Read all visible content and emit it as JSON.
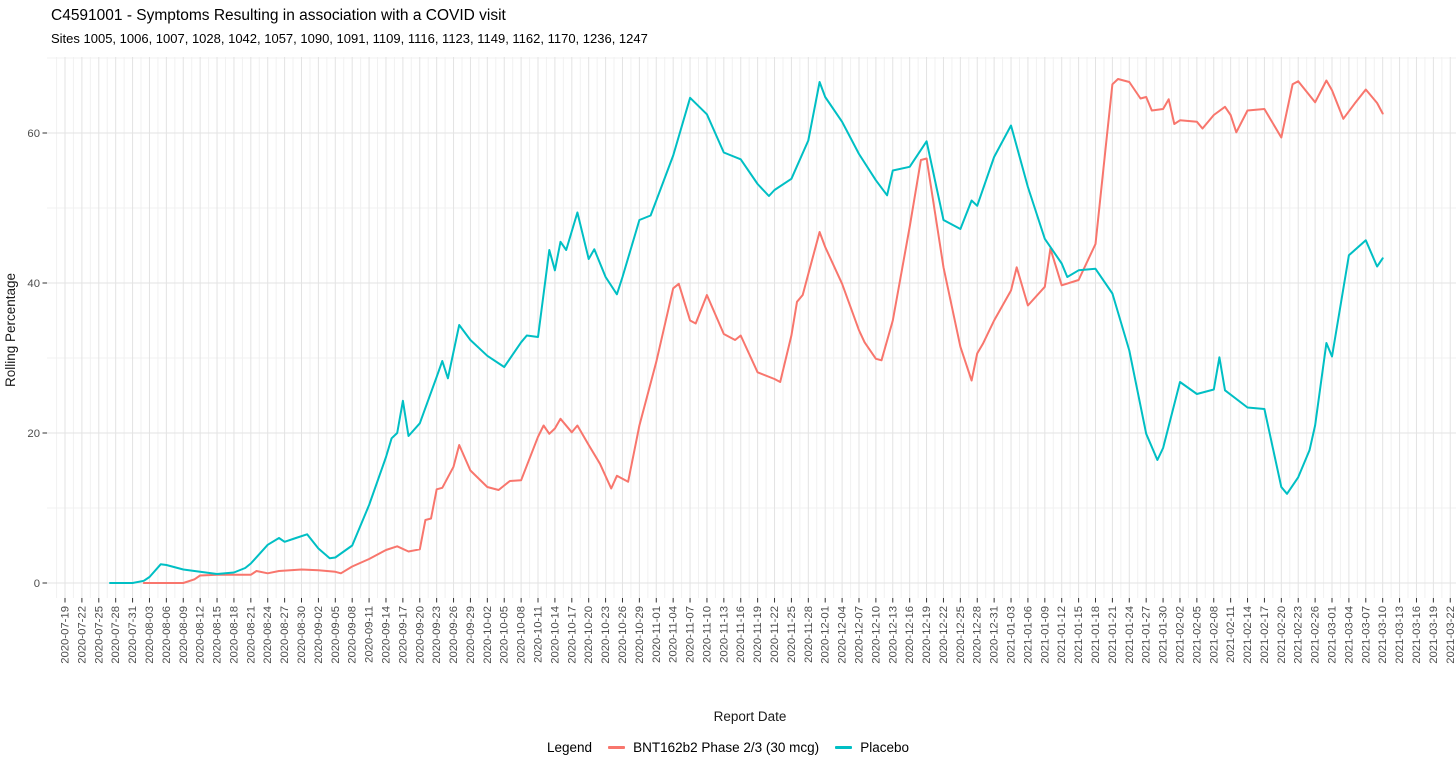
{
  "chart": {
    "title": "C4591001 - Symptoms Resulting in association with a COVID visit",
    "subtitle": "Sites 1005, 1006, 1007, 1028, 1042, 1057, 1090, 1091, 1109, 1116, 1123, 1149, 1162, 1170, 1236, 1247",
    "xlabel": "Report Date",
    "ylabel": "Rolling Percentage",
    "legend_title": "Legend"
  },
  "chart_data": {
    "type": "line",
    "title": "C4591001 - Symptoms Resulting in association with a COVID visit",
    "subtitle": "Sites 1005, 1006, 1007, 1028, 1042, 1057, 1090, 1091, 1109, 1116, 1123, 1149, 1162, 1170, 1236, 1247",
    "xlabel": "Report Date",
    "ylabel": "Rolling Percentage",
    "ylim": [
      -2,
      70
    ],
    "xlim": [
      "2020-07-19",
      "2021-03-22"
    ],
    "grid": true,
    "legend_position": "bottom",
    "y_ticks": [
      0,
      20,
      40,
      60
    ],
    "y_minor_ticks": [
      10,
      30,
      50,
      70
    ],
    "x_ticks": [
      "2020-07-19",
      "2020-07-22",
      "2020-07-25",
      "2020-07-28",
      "2020-07-31",
      "2020-08-03",
      "2020-08-06",
      "2020-08-09",
      "2020-08-12",
      "2020-08-15",
      "2020-08-18",
      "2020-08-21",
      "2020-08-24",
      "2020-08-27",
      "2020-08-30",
      "2020-09-02",
      "2020-09-05",
      "2020-09-08",
      "2020-09-11",
      "2020-09-14",
      "2020-09-17",
      "2020-09-20",
      "2020-09-23",
      "2020-09-26",
      "2020-09-29",
      "2020-10-02",
      "2020-10-05",
      "2020-10-08",
      "2020-10-11",
      "2020-10-14",
      "2020-10-17",
      "2020-10-20",
      "2020-10-23",
      "2020-10-26",
      "2020-10-29",
      "2020-11-01",
      "2020-11-04",
      "2020-11-07",
      "2020-11-10",
      "2020-11-13",
      "2020-11-16",
      "2020-11-19",
      "2020-11-22",
      "2020-11-25",
      "2020-11-28",
      "2020-12-01",
      "2020-12-04",
      "2020-12-07",
      "2020-12-10",
      "2020-12-13",
      "2020-12-16",
      "2020-12-19",
      "2020-12-22",
      "2020-12-25",
      "2020-12-28",
      "2020-12-31",
      "2021-01-03",
      "2021-01-06",
      "2021-01-09",
      "2021-01-12",
      "2021-01-15",
      "2021-01-18",
      "2021-01-21",
      "2021-01-24",
      "2021-01-27",
      "2021-01-30",
      "2021-02-02",
      "2021-02-05",
      "2021-02-08",
      "2021-02-11",
      "2021-02-14",
      "2021-02-17",
      "2021-02-20",
      "2021-02-23",
      "2021-02-26",
      "2021-03-01",
      "2021-03-04",
      "2021-03-07",
      "2021-03-10",
      "2021-03-13",
      "2021-03-16",
      "2021-03-19",
      "2021-03-22"
    ],
    "series": [
      {
        "name": "BNT162b2 Phase 2/3 (30 mcg)",
        "color": "#F8766D",
        "points": [
          [
            "2020-08-02",
            0
          ],
          [
            "2020-08-09",
            0
          ],
          [
            "2020-08-11",
            0.5
          ],
          [
            "2020-08-12",
            1.0
          ],
          [
            "2020-08-15",
            1.1
          ],
          [
            "2020-08-18",
            1.1
          ],
          [
            "2020-08-21",
            1.1
          ],
          [
            "2020-08-22",
            1.6
          ],
          [
            "2020-08-24",
            1.3
          ],
          [
            "2020-08-26",
            1.6
          ],
          [
            "2020-08-30",
            1.8
          ],
          [
            "2020-09-02",
            1.7
          ],
          [
            "2020-09-05",
            1.5
          ],
          [
            "2020-09-06",
            1.3
          ],
          [
            "2020-09-08",
            2.2
          ],
          [
            "2020-09-11",
            3.2
          ],
          [
            "2020-09-14",
            4.4
          ],
          [
            "2020-09-16",
            4.9
          ],
          [
            "2020-09-18",
            4.2
          ],
          [
            "2020-09-20",
            4.5
          ],
          [
            "2020-09-21",
            8.4
          ],
          [
            "2020-09-22",
            8.6
          ],
          [
            "2020-09-23",
            12.5
          ],
          [
            "2020-09-24",
            12.7
          ],
          [
            "2020-09-26",
            15.5
          ],
          [
            "2020-09-27",
            18.4
          ],
          [
            "2020-09-29",
            15.0
          ],
          [
            "2020-10-02",
            12.8
          ],
          [
            "2020-10-04",
            12.4
          ],
          [
            "2020-10-05",
            13.0
          ],
          [
            "2020-10-06",
            13.6
          ],
          [
            "2020-10-08",
            13.7
          ],
          [
            "2020-10-11",
            19.5
          ],
          [
            "2020-10-12",
            21.0
          ],
          [
            "2020-10-13",
            19.9
          ],
          [
            "2020-10-14",
            20.6
          ],
          [
            "2020-10-15",
            21.9
          ],
          [
            "2020-10-17",
            20.1
          ],
          [
            "2020-10-18",
            21.0
          ],
          [
            "2020-10-20",
            18.4
          ],
          [
            "2020-10-22",
            15.9
          ],
          [
            "2020-10-24",
            12.6
          ],
          [
            "2020-10-25",
            14.3
          ],
          [
            "2020-10-27",
            13.5
          ],
          [
            "2020-10-29",
            21.0
          ],
          [
            "2020-11-01",
            29.5
          ],
          [
            "2020-11-04",
            39.3
          ],
          [
            "2020-11-05",
            39.9
          ],
          [
            "2020-11-07",
            35.0
          ],
          [
            "2020-11-08",
            34.6
          ],
          [
            "2020-11-10",
            38.4
          ],
          [
            "2020-11-13",
            33.2
          ],
          [
            "2020-11-15",
            32.4
          ],
          [
            "2020-11-16",
            33.0
          ],
          [
            "2020-11-19",
            28.1
          ],
          [
            "2020-11-22",
            27.2
          ],
          [
            "2020-11-23",
            26.8
          ],
          [
            "2020-11-25",
            33.0
          ],
          [
            "2020-11-26",
            37.5
          ],
          [
            "2020-11-27",
            38.4
          ],
          [
            "2020-11-28",
            41.2
          ],
          [
            "2020-11-30",
            46.8
          ],
          [
            "2020-12-01",
            44.8
          ],
          [
            "2020-12-04",
            39.9
          ],
          [
            "2020-12-07",
            33.7
          ],
          [
            "2020-12-08",
            32.1
          ],
          [
            "2020-12-10",
            29.9
          ],
          [
            "2020-12-11",
            29.7
          ],
          [
            "2020-12-13",
            35.0
          ],
          [
            "2020-12-16",
            47.5
          ],
          [
            "2020-12-18",
            56.4
          ],
          [
            "2020-12-19",
            56.6
          ],
          [
            "2020-12-22",
            42.1
          ],
          [
            "2020-12-25",
            31.5
          ],
          [
            "2020-12-27",
            27.0
          ],
          [
            "2020-12-28",
            30.6
          ],
          [
            "2020-12-29",
            31.9
          ],
          [
            "2020-12-31",
            35.0
          ],
          [
            "2021-01-03",
            39.0
          ],
          [
            "2021-01-04",
            42.1
          ],
          [
            "2021-01-06",
            37.0
          ],
          [
            "2021-01-09",
            39.5
          ],
          [
            "2021-01-10",
            44.6
          ],
          [
            "2021-01-12",
            39.7
          ],
          [
            "2021-01-15",
            40.4
          ],
          [
            "2021-01-18",
            45.2
          ],
          [
            "2021-01-20",
            59.5
          ],
          [
            "2021-01-21",
            66.5
          ],
          [
            "2021-01-22",
            67.2
          ],
          [
            "2021-01-24",
            66.8
          ],
          [
            "2021-01-26",
            64.6
          ],
          [
            "2021-01-27",
            64.8
          ],
          [
            "2021-01-28",
            63.0
          ],
          [
            "2021-01-30",
            63.2
          ],
          [
            "2021-01-31",
            64.5
          ],
          [
            "2021-02-01",
            61.2
          ],
          [
            "2021-02-02",
            61.7
          ],
          [
            "2021-02-05",
            61.5
          ],
          [
            "2021-02-06",
            60.6
          ],
          [
            "2021-02-08",
            62.4
          ],
          [
            "2021-02-10",
            63.5
          ],
          [
            "2021-02-11",
            62.4
          ],
          [
            "2021-02-12",
            60.1
          ],
          [
            "2021-02-14",
            63.0
          ],
          [
            "2021-02-17",
            63.2
          ],
          [
            "2021-02-20",
            59.4
          ],
          [
            "2021-02-22",
            66.5
          ],
          [
            "2021-02-23",
            66.9
          ],
          [
            "2021-02-26",
            64.1
          ],
          [
            "2021-02-28",
            67.0
          ],
          [
            "2021-03-01",
            65.7
          ],
          [
            "2021-03-03",
            61.9
          ],
          [
            "2021-03-05",
            63.9
          ],
          [
            "2021-03-07",
            65.8
          ],
          [
            "2021-03-09",
            64.0
          ],
          [
            "2021-03-10",
            62.6
          ]
        ]
      },
      {
        "name": "Placebo",
        "color": "#00BFC4",
        "points": [
          [
            "2020-07-27",
            0
          ],
          [
            "2020-07-31",
            0
          ],
          [
            "2020-08-02",
            0.3
          ],
          [
            "2020-08-03",
            0.8
          ],
          [
            "2020-08-05",
            2.5
          ],
          [
            "2020-08-06",
            2.4
          ],
          [
            "2020-08-09",
            1.8
          ],
          [
            "2020-08-12",
            1.5
          ],
          [
            "2020-08-15",
            1.2
          ],
          [
            "2020-08-18",
            1.4
          ],
          [
            "2020-08-20",
            2.0
          ],
          [
            "2020-08-21",
            2.6
          ],
          [
            "2020-08-24",
            5.1
          ],
          [
            "2020-08-26",
            6.0
          ],
          [
            "2020-08-27",
            5.5
          ],
          [
            "2020-08-29",
            6.0
          ],
          [
            "2020-08-31",
            6.5
          ],
          [
            "2020-09-02",
            4.6
          ],
          [
            "2020-09-04",
            3.3
          ],
          [
            "2020-09-05",
            3.4
          ],
          [
            "2020-09-08",
            5.0
          ],
          [
            "2020-09-11",
            10.4
          ],
          [
            "2020-09-14",
            16.8
          ],
          [
            "2020-09-15",
            19.3
          ],
          [
            "2020-09-16",
            20.0
          ],
          [
            "2020-09-17",
            24.3
          ],
          [
            "2020-09-18",
            19.6
          ],
          [
            "2020-09-20",
            21.3
          ],
          [
            "2020-09-23",
            27.5
          ],
          [
            "2020-09-24",
            29.6
          ],
          [
            "2020-09-25",
            27.3
          ],
          [
            "2020-09-27",
            34.4
          ],
          [
            "2020-09-29",
            32.4
          ],
          [
            "2020-10-02",
            30.3
          ],
          [
            "2020-10-05",
            28.8
          ],
          [
            "2020-10-08",
            32.1
          ],
          [
            "2020-10-09",
            33.0
          ],
          [
            "2020-10-11",
            32.8
          ],
          [
            "2020-10-13",
            44.4
          ],
          [
            "2020-10-14",
            41.7
          ],
          [
            "2020-10-15",
            45.5
          ],
          [
            "2020-10-16",
            44.4
          ],
          [
            "2020-10-18",
            49.4
          ],
          [
            "2020-10-20",
            43.2
          ],
          [
            "2020-10-21",
            44.5
          ],
          [
            "2020-10-23",
            40.8
          ],
          [
            "2020-10-25",
            38.5
          ],
          [
            "2020-10-26",
            40.8
          ],
          [
            "2020-10-29",
            48.4
          ],
          [
            "2020-10-31",
            49.0
          ],
          [
            "2020-11-01",
            51.0
          ],
          [
            "2020-11-04",
            57.0
          ],
          [
            "2020-11-07",
            64.7
          ],
          [
            "2020-11-10",
            62.5
          ],
          [
            "2020-11-13",
            57.4
          ],
          [
            "2020-11-16",
            56.5
          ],
          [
            "2020-11-19",
            53.2
          ],
          [
            "2020-11-21",
            51.6
          ],
          [
            "2020-11-22",
            52.4
          ],
          [
            "2020-11-25",
            53.9
          ],
          [
            "2020-11-28",
            59.0
          ],
          [
            "2020-11-30",
            66.8
          ],
          [
            "2020-12-01",
            64.8
          ],
          [
            "2020-12-04",
            61.5
          ],
          [
            "2020-12-07",
            57.2
          ],
          [
            "2020-12-10",
            53.7
          ],
          [
            "2020-12-12",
            51.7
          ],
          [
            "2020-12-13",
            55.0
          ],
          [
            "2020-12-16",
            55.5
          ],
          [
            "2020-12-19",
            58.9
          ],
          [
            "2020-12-22",
            48.4
          ],
          [
            "2020-12-25",
            47.2
          ],
          [
            "2020-12-27",
            51.0
          ],
          [
            "2020-12-28",
            50.3
          ],
          [
            "2020-12-31",
            56.8
          ],
          [
            "2021-01-03",
            61.0
          ],
          [
            "2021-01-06",
            52.8
          ],
          [
            "2021-01-09",
            45.9
          ],
          [
            "2021-01-12",
            42.6
          ],
          [
            "2021-01-13",
            40.8
          ],
          [
            "2021-01-15",
            41.7
          ],
          [
            "2021-01-18",
            41.9
          ],
          [
            "2021-01-21",
            38.6
          ],
          [
            "2021-01-24",
            31.0
          ],
          [
            "2021-01-27",
            19.9
          ],
          [
            "2021-01-29",
            16.4
          ],
          [
            "2021-01-30",
            18.0
          ],
          [
            "2021-02-02",
            26.8
          ],
          [
            "2021-02-05",
            25.2
          ],
          [
            "2021-02-08",
            25.8
          ],
          [
            "2021-02-09",
            30.1
          ],
          [
            "2021-02-10",
            25.7
          ],
          [
            "2021-02-14",
            23.4
          ],
          [
            "2021-02-17",
            23.2
          ],
          [
            "2021-02-20",
            12.8
          ],
          [
            "2021-02-21",
            11.9
          ],
          [
            "2021-02-23",
            14.1
          ],
          [
            "2021-02-25",
            17.7
          ],
          [
            "2021-02-26",
            21.0
          ],
          [
            "2021-02-28",
            32.0
          ],
          [
            "2021-03-01",
            30.2
          ],
          [
            "2021-03-04",
            43.7
          ],
          [
            "2021-03-07",
            45.7
          ],
          [
            "2021-03-09",
            42.2
          ],
          [
            "2021-03-10",
            43.3
          ]
        ]
      }
    ]
  }
}
